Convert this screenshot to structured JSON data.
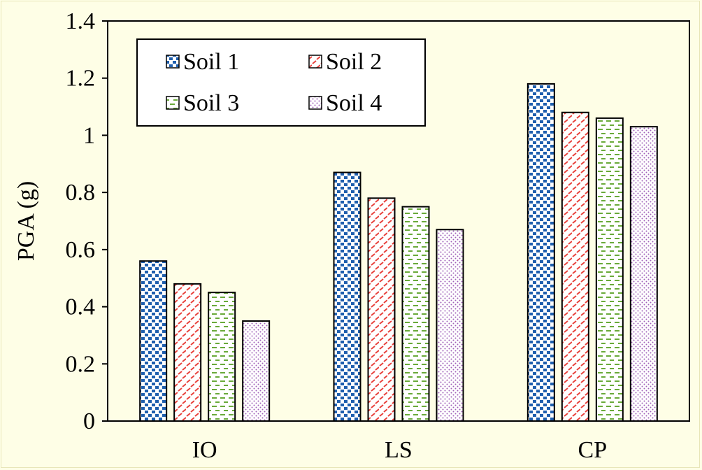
{
  "chart_data": {
    "type": "bar",
    "title": "",
    "xlabel": "",
    "ylabel": "PGA (g)",
    "categories": [
      "IO",
      "LS",
      "CP"
    ],
    "ylim": [
      0,
      1.4
    ],
    "yticks": [
      "0",
      "0.2",
      "0.4",
      "0.6",
      "0.8",
      "1",
      "1.2",
      "1.4"
    ],
    "ytick_values": [
      0,
      0.2,
      0.4,
      0.6,
      0.8,
      1.0,
      1.2,
      1.4
    ],
    "grid": false,
    "legend_position": "top-left",
    "series": [
      {
        "name": "Soil 1",
        "values": [
          0.56,
          0.87,
          1.18
        ],
        "color": "#1f5fae",
        "pattern": "dots"
      },
      {
        "name": "Soil 2",
        "values": [
          0.48,
          0.78,
          1.08
        ],
        "color": "#e8403a",
        "pattern": "diagonal-dashes"
      },
      {
        "name": "Soil 3",
        "values": [
          0.45,
          0.75,
          1.06
        ],
        "color": "#6aaa3a",
        "pattern": "horizontal-dashes"
      },
      {
        "name": "Soil 4",
        "values": [
          0.35,
          0.67,
          1.03
        ],
        "color": "#a060b8",
        "pattern": "fine-dots"
      }
    ]
  }
}
